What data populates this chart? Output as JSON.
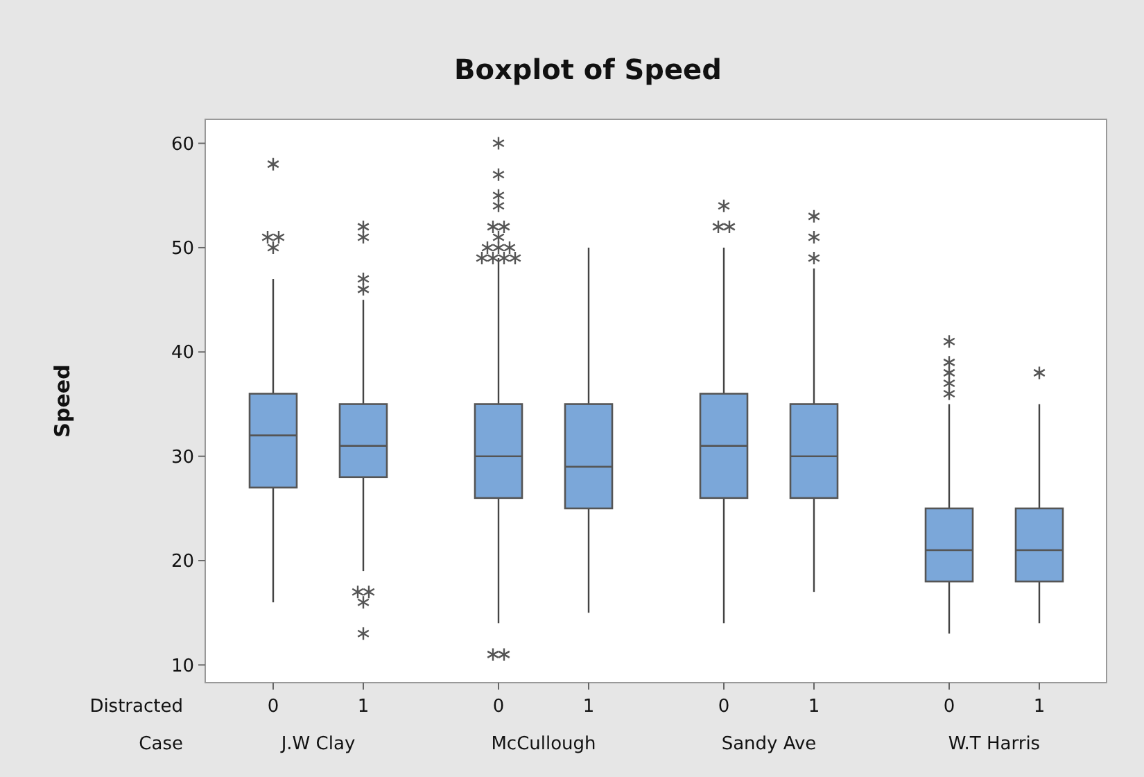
{
  "chart_data": {
    "type": "box",
    "title": "Boxplot of Speed",
    "ylabel": "Speed",
    "categories": [
      "0",
      "1",
      "0",
      "1",
      "0",
      "1",
      "0",
      "1"
    ],
    "annotations": [
      "Distracted",
      "Case",
      "J.W Clay",
      "McCullough",
      "Sandy Ave",
      "W.T Harris"
    ],
    "color": "#7ba7d9",
    "marker": "star",
    "grid": false,
    "ylim": [
      8.3,
      62.3
    ],
    "yticks": [
      10,
      20,
      30,
      40,
      50,
      60
    ],
    "boxes": [
      {
        "low": 16,
        "q1": 27,
        "median": 32,
        "q3": 36,
        "high": 47,
        "outliers": [
          58,
          51,
          51,
          50
        ]
      },
      {
        "low": 19,
        "q1": 28,
        "median": 31,
        "q3": 35,
        "high": 45,
        "outliers": [
          52,
          51,
          47,
          46,
          17,
          17,
          16,
          13
        ]
      },
      {
        "low": 14,
        "q1": 26,
        "median": 30,
        "q3": 35,
        "high": 49,
        "outliers": [
          60,
          57,
          55,
          54,
          52,
          52,
          51,
          50,
          50,
          50,
          49,
          49,
          49,
          49,
          11,
          11
        ]
      },
      {
        "low": 15,
        "q1": 25,
        "median": 29,
        "q3": 35,
        "high": 50
      },
      {
        "low": 14,
        "q1": 26,
        "median": 31,
        "q3": 36,
        "high": 50,
        "outliers": [
          54,
          52,
          52
        ]
      },
      {
        "low": 17,
        "q1": 26,
        "median": 30,
        "q3": 35,
        "high": 48,
        "outliers": [
          53,
          51,
          49
        ]
      },
      {
        "low": 13,
        "q1": 18,
        "median": 21,
        "q3": 25,
        "high": 35,
        "outliers": [
          41,
          39,
          38,
          37,
          36
        ]
      },
      {
        "low": 14,
        "q1": 18,
        "median": 21,
        "q3": 25,
        "high": 35,
        "outliers": [
          38
        ]
      }
    ]
  }
}
